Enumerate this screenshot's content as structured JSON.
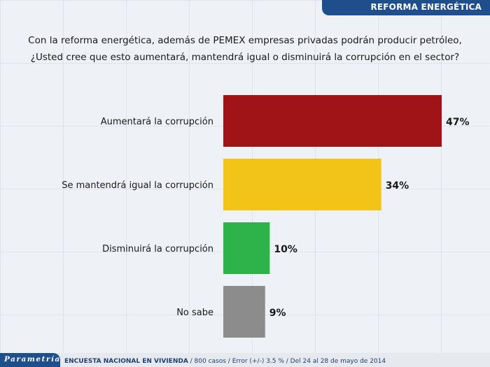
{
  "header": {
    "title": "REFORMA ENERGÉTICA"
  },
  "question": {
    "line1": "Con la reforma energética, además de PEMEX empresas privadas podrán producir petróleo,",
    "line2": "¿Usted cree que esto aumentará, mantendrá igual o disminuirá la corrupción en el sector?"
  },
  "chart_data": {
    "type": "bar",
    "orientation": "horizontal",
    "categories": [
      "Aumentará la corrupción",
      "Se mantendrá igual la corrupción",
      "Disminuirá la corrupción",
      "No sabe"
    ],
    "values": [
      47,
      34,
      10,
      9
    ],
    "value_labels": [
      "47%",
      "34%",
      "10%",
      "9%"
    ],
    "colors": [
      "#a01418",
      "#f2c318",
      "#2db34a",
      "#8c8c8c"
    ],
    "xlim": [
      0,
      50
    ],
    "grid": false,
    "legend": "none"
  },
  "footer": {
    "brand": "Parametría",
    "survey_name": "ENCUESTA NACIONAL EN VIVIENDA",
    "details": " / 800 casos / Error (+/-) 3.5 % / Del 24 al 28 de mayo de 2014"
  }
}
